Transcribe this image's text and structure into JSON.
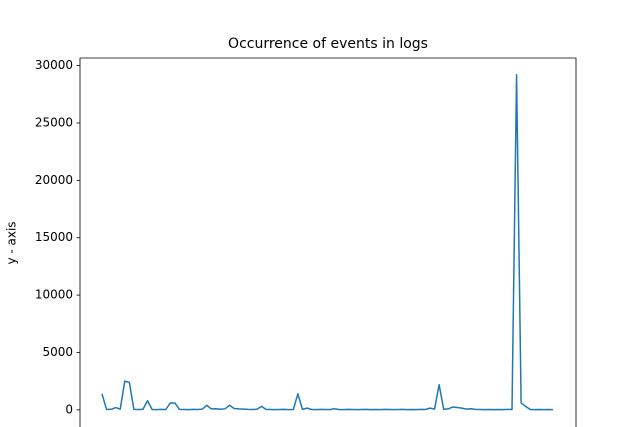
{
  "chart_data": {
    "type": "line",
    "title": "Occurrence of events in logs",
    "y_label": "y - axis",
    "color": "#1f77b4",
    "ylim": [
      -1460,
      30660
    ],
    "yticks": [
      0,
      5000,
      10000,
      15000,
      20000,
      25000,
      30000
    ],
    "grid": false,
    "values": [
      1400,
      30,
      50,
      200,
      60,
      2500,
      2400,
      40,
      30,
      50,
      800,
      30,
      20,
      40,
      30,
      600,
      600,
      40,
      30,
      20,
      40,
      30,
      60,
      400,
      80,
      100,
      50,
      90,
      400,
      120,
      80,
      60,
      40,
      30,
      50,
      300,
      40,
      30,
      20,
      30,
      40,
      20,
      30,
      1400,
      40,
      150,
      30,
      20,
      40,
      30,
      20,
      100,
      30,
      20,
      40,
      30,
      20,
      30,
      40,
      20,
      30,
      20,
      40,
      30,
      20,
      30,
      40,
      20,
      30,
      20,
      40,
      30,
      150,
      60,
      2200,
      50,
      80,
      250,
      200,
      150,
      60,
      100,
      40,
      30,
      20,
      30,
      20,
      30,
      20,
      40,
      30,
      29200,
      600,
      300,
      30,
      20,
      30,
      20,
      30,
      20
    ]
  }
}
